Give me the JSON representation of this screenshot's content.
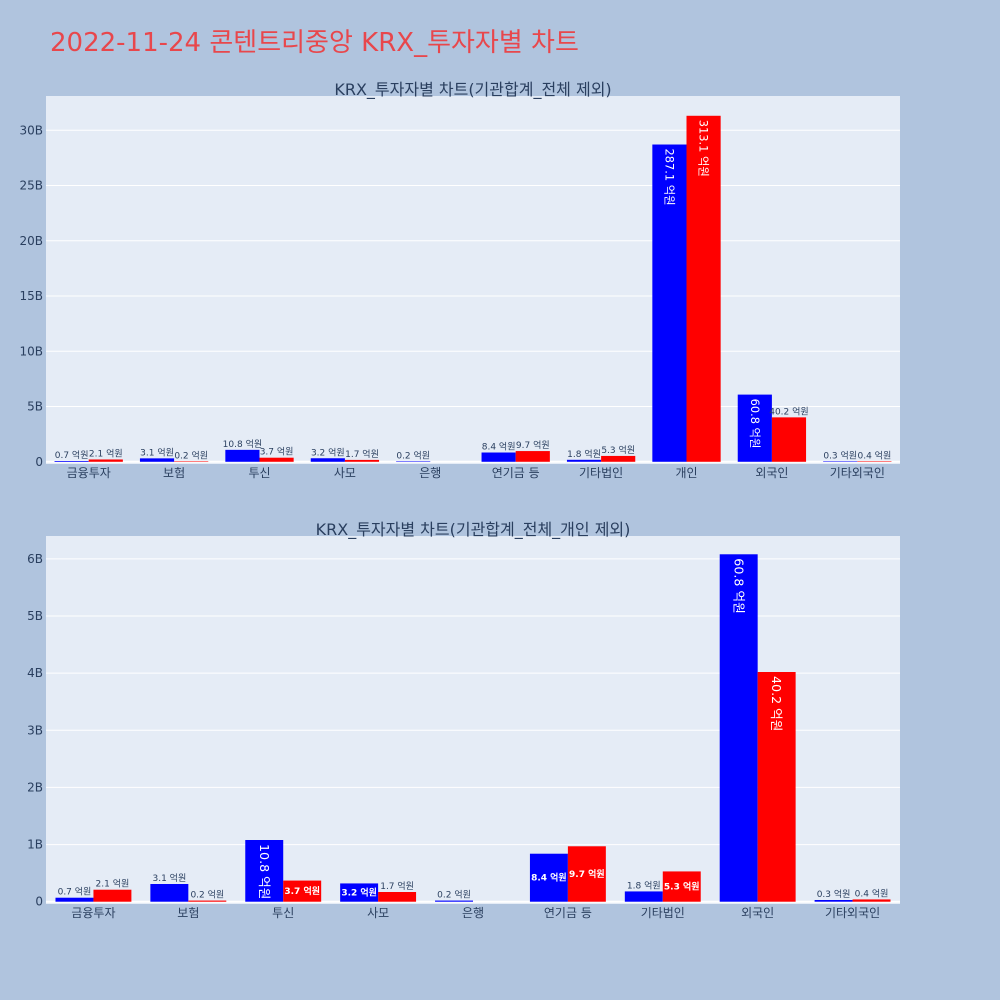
{
  "page_title": "2022-11-24 콘텐트리중앙 KRX_투자자별 차트",
  "colors": {
    "buy": "#0000ff",
    "sell": "#ff0000",
    "plot_bg": "#e5ecf6",
    "page_bg": "#b0c4de",
    "title": "#e8474c"
  },
  "chart_data": [
    {
      "type": "bar",
      "title": "KRX_투자자별 차트(기관합계_전체 제외)",
      "categories": [
        "금융투자",
        "보험",
        "투신",
        "사모",
        "은행",
        "연기금 등",
        "기타법인",
        "개인",
        "외국인",
        "기타외국인"
      ],
      "series": [
        {
          "values": [
            0.07,
            0.31,
            1.08,
            0.32,
            0.02,
            0.84,
            0.18,
            28.71,
            6.08,
            0.03
          ],
          "labels": [
            "0.7 억원",
            "3.1 억원",
            "10.8 억원",
            "3.2 억원",
            "0.2 억원",
            "8.4 억원",
            "1.8 억원",
            "287.1 억원",
            "60.8 억원",
            "0.3 억원"
          ]
        },
        {
          "values": [
            0.21,
            0.02,
            0.37,
            0.17,
            null,
            0.97,
            0.53,
            31.31,
            4.02,
            0.04
          ],
          "labels": [
            "2.1 억원",
            "0.2 억원",
            "3.7 억원",
            "1.7 억원",
            null,
            "9.7 억원",
            "5.3 억원",
            "313.1 억원",
            "40.2 억원",
            "0.4 억원"
          ]
        }
      ],
      "ylim": [
        -0.2,
        33.1
      ],
      "ytick_values": [
        0,
        5,
        10,
        15,
        20,
        25,
        30
      ],
      "ytick_labels": [
        "0",
        "5B",
        "10B",
        "15B",
        "20B",
        "25B",
        "30B"
      ],
      "grid": true
    },
    {
      "type": "bar",
      "title": "KRX_투자자별 차트(기관합계_전체_개인 제외)",
      "categories": [
        "금융투자",
        "보험",
        "투신",
        "사모",
        "은행",
        "연기금 등",
        "기타법인",
        "외국인",
        "기타외국인"
      ],
      "series": [
        {
          "values": [
            0.07,
            0.31,
            1.08,
            0.32,
            0.02,
            0.84,
            0.18,
            6.08,
            0.03
          ],
          "labels": [
            "0.7 억원",
            "3.1 억원",
            "10.8 억원",
            "3.2 억원",
            "0.2 억원",
            "8.4 억원",
            "1.8 억원",
            "60.8 억원",
            "0.3 억원"
          ]
        },
        {
          "values": [
            0.21,
            0.02,
            0.37,
            0.17,
            null,
            0.97,
            0.53,
            4.02,
            0.04
          ],
          "labels": [
            "2.1 억원",
            "0.2 억원",
            "3.7 억원",
            "1.7 억원",
            null,
            "9.7 억원",
            "5.3 억원",
            "40.2 억원",
            "0.4 억원"
          ]
        }
      ],
      "ylim": [
        -0.04,
        6.4
      ],
      "ytick_values": [
        0,
        1,
        2,
        3,
        4,
        5,
        6
      ],
      "ytick_labels": [
        "0",
        "1B",
        "2B",
        "3B",
        "4B",
        "5B",
        "6B"
      ],
      "grid": true
    }
  ]
}
